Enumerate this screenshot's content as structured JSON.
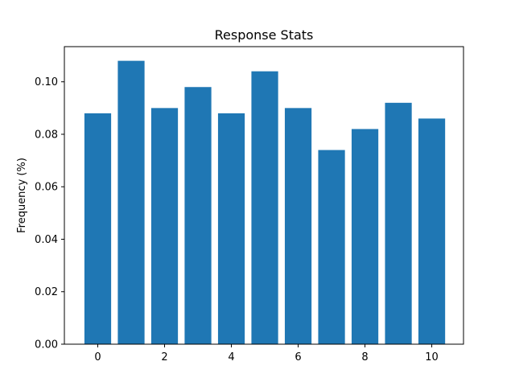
{
  "chart_data": {
    "type": "bar",
    "title": "Response Stats",
    "xlabel": "",
    "ylabel": "Frequency (%)",
    "x": [
      0,
      1,
      2,
      3,
      4,
      5,
      6,
      7,
      8,
      9,
      10
    ],
    "values": [
      0.088,
      0.108,
      0.09,
      0.098,
      0.088,
      0.104,
      0.09,
      0.074,
      0.082,
      0.092,
      0.086
    ],
    "xlim": [
      -1.0,
      10.95
    ],
    "ylim": [
      0,
      0.1134
    ],
    "xticks": [
      0,
      2,
      4,
      6,
      8,
      10
    ],
    "yticks": [
      0.0,
      0.02,
      0.04,
      0.06,
      0.08,
      0.1
    ],
    "xtick_labels": [
      "0",
      "2",
      "4",
      "6",
      "8",
      "10"
    ],
    "ytick_labels": [
      "0.00",
      "0.02",
      "0.04",
      "0.06",
      "0.08",
      "0.10"
    ],
    "bar_color": "#1f77b4",
    "grid": false,
    "legend": "none"
  }
}
